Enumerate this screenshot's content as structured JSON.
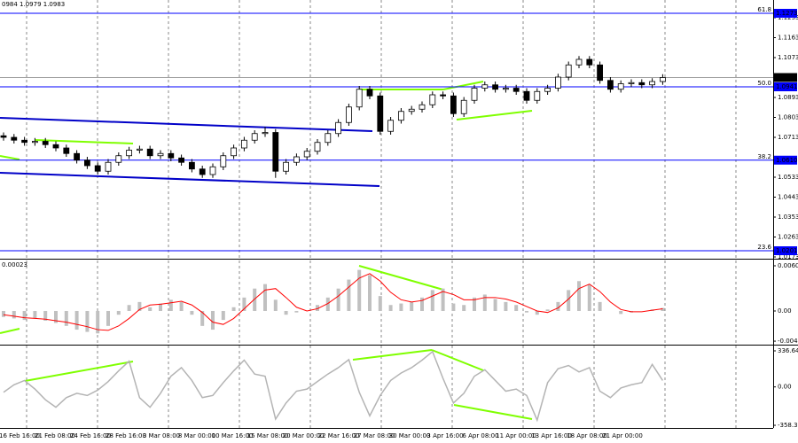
{
  "chart_data": [
    {
      "type": "candlestick",
      "header": "0984 1.0979 1.0983",
      "open": [
        1.072,
        1.0713,
        1.07,
        1.069,
        1.0695,
        1.068,
        1.0665,
        1.064,
        1.061,
        1.0585,
        1.056,
        1.06,
        1.063,
        1.0655,
        1.066,
        1.063,
        1.064,
        1.062,
        1.06,
        1.057,
        1.0545,
        1.058,
        1.063,
        1.0665,
        1.07,
        1.073,
        1.0735,
        1.056,
        1.06,
        1.0625,
        1.065,
        1.069,
        1.073,
        1.078,
        1.085,
        1.093,
        1.09,
        1.074,
        1.079,
        1.083,
        1.084,
        1.086,
        1.0905,
        1.09,
        1.082,
        1.088,
        1.0935,
        1.095,
        1.093,
        1.0935,
        1.092,
        1.088,
        1.092,
        1.0935,
        1.0985,
        1.104,
        1.1065,
        1.104,
        1.097,
        1.093,
        1.0955,
        1.096,
        1.095,
        1.0965
      ],
      "high": [
        1.0735,
        1.0728,
        1.0715,
        1.071,
        1.071,
        1.0695,
        1.068,
        1.0655,
        1.0625,
        1.06,
        1.0615,
        1.0645,
        1.067,
        1.0675,
        1.0675,
        1.0655,
        1.0655,
        1.0635,
        1.0615,
        1.0585,
        1.0595,
        1.0645,
        1.068,
        1.0715,
        1.0745,
        1.076,
        1.075,
        1.0615,
        1.064,
        1.0665,
        1.0705,
        1.0745,
        1.0795,
        1.0865,
        1.0945,
        1.0945,
        1.0915,
        1.0805,
        1.0845,
        1.0855,
        1.0875,
        1.092,
        1.092,
        1.0915,
        1.0895,
        1.095,
        1.0965,
        1.0965,
        1.095,
        1.095,
        1.0935,
        1.0935,
        1.095,
        1.1,
        1.1055,
        1.108,
        1.108,
        1.1055,
        1.0985,
        1.097,
        1.0975,
        1.0975,
        1.098,
        1.0998
      ],
      "low": [
        1.0698,
        1.0685,
        1.0675,
        1.0675,
        1.0665,
        1.065,
        1.0625,
        1.0595,
        1.057,
        1.0545,
        1.0545,
        1.0585,
        1.0615,
        1.064,
        1.0615,
        1.0615,
        1.0605,
        1.0585,
        1.0555,
        1.053,
        1.053,
        1.0565,
        1.0615,
        1.065,
        1.0685,
        1.0715,
        1.053,
        1.0545,
        1.0585,
        1.061,
        1.0635,
        1.0675,
        1.0715,
        1.0765,
        1.0835,
        1.0885,
        1.0725,
        1.0725,
        1.0775,
        1.0815,
        1.0825,
        1.0845,
        1.0885,
        1.0805,
        1.0805,
        1.0865,
        1.092,
        1.0915,
        1.0915,
        1.0905,
        1.0865,
        1.0865,
        1.0905,
        1.092,
        1.097,
        1.1025,
        1.1025,
        1.0955,
        1.0915,
        1.0915,
        1.094,
        1.0935,
        1.0935,
        1.095
      ],
      "close": [
        1.0713,
        1.07,
        1.069,
        1.0695,
        1.068,
        1.0665,
        1.064,
        1.061,
        1.0585,
        1.056,
        1.06,
        1.063,
        1.0655,
        1.066,
        1.063,
        1.064,
        1.062,
        1.06,
        1.057,
        1.0545,
        1.058,
        1.063,
        1.0665,
        1.07,
        1.073,
        1.0735,
        1.056,
        1.06,
        1.0625,
        1.065,
        1.069,
        1.073,
        1.078,
        1.085,
        1.093,
        1.09,
        1.074,
        1.079,
        1.083,
        1.084,
        1.086,
        1.0905,
        1.09,
        1.082,
        1.088,
        1.0935,
        1.095,
        1.093,
        1.0935,
        1.092,
        1.088,
        1.092,
        1.0935,
        1.0985,
        1.104,
        1.1065,
        1.104,
        1.097,
        1.093,
        1.0955,
        1.096,
        1.095,
        1.0965,
        1.0983
      ],
      "ylim": [
        1.0173,
        1.1333
      ],
      "yticks": [
        1.1253,
        1.1163,
        1.1073,
        1.0893,
        1.0803,
        1.0713,
        1.0533,
        1.0443,
        1.0353,
        1.0263,
        1.0173
      ],
      "levels": [
        {
          "name": "61.8",
          "value": 1.1273
        },
        {
          "name": "50.0",
          "value": 1.0941
        },
        {
          "name": "38.2",
          "value": {
            "value": 1.061,
            "label": "1.0610"
          }
        },
        {
          "name": "23.6",
          "value": 1.0201
        }
      ],
      "current": 1.0983,
      "x_labels": [
        "16 Feb 16:00",
        "21 Feb 08:00",
        "24 Feb 16:00",
        "28 Feb 16:00",
        "3 Mar 08:00",
        "8 Mar 00:00",
        "10 Mar 16:00",
        "15 Mar 08:00",
        "20 Mar 00:00",
        "22 Mar 16:00",
        "27 Mar 08:00",
        "30 Mar 00:00",
        "3 Apr 16:00",
        "6 Apr 08:00",
        "11 Apr 00:00",
        "13 Apr 16:00",
        "18 Apr 08:00",
        "21 Apr 00:00"
      ]
    },
    {
      "type": "macd",
      "label": "0.00023",
      "values": [
        -0.0008,
        -0.001,
        -0.0012,
        -0.001,
        -0.0013,
        -0.0016,
        -0.002,
        -0.0025,
        -0.0028,
        -0.003,
        -0.002,
        -0.0005,
        0.0008,
        0.0012,
        0.0005,
        0.001,
        0.0015,
        0.0012,
        -0.0005,
        -0.002,
        -0.0025,
        -0.0012,
        0.0005,
        0.0018,
        0.003,
        0.0036,
        0.0015,
        -0.0005,
        -0.0002,
        0.0,
        0.0008,
        0.0018,
        0.003,
        0.0042,
        0.0055,
        0.0048,
        0.002,
        0.0008,
        0.001,
        0.0012,
        0.0018,
        0.0028,
        0.003,
        0.001,
        0.0008,
        0.0018,
        0.0022,
        0.0016,
        0.0012,
        0.0008,
        -0.0002,
        -0.0005,
        0.0002,
        0.0012,
        0.0028,
        0.004,
        0.0035,
        0.0012,
        0.0,
        -0.0004,
        -0.0002,
        0.0,
        0.0002,
        0.0004
      ],
      "signal": [
        -0.0005,
        -0.0007,
        -0.0009,
        -0.001,
        -0.0011,
        -0.0013,
        -0.0015,
        -0.0018,
        -0.0021,
        -0.0025,
        -0.0026,
        -0.002,
        -0.001,
        0.0002,
        0.0008,
        0.0009,
        0.0011,
        0.0013,
        0.0008,
        -0.0002,
        -0.0015,
        -0.0018,
        -0.001,
        0.0003,
        0.0016,
        0.0028,
        0.003,
        0.0018,
        0.0005,
        0.0,
        0.0003,
        0.001,
        0.002,
        0.0032,
        0.0044,
        0.005,
        0.004,
        0.0025,
        0.0015,
        0.0012,
        0.0014,
        0.002,
        0.0026,
        0.0022,
        0.0015,
        0.0015,
        0.0018,
        0.0018,
        0.0016,
        0.0012,
        0.0006,
        0.0,
        -0.0002,
        0.0004,
        0.0016,
        0.003,
        0.0036,
        0.0026,
        0.0012,
        0.0002,
        -0.0001,
        -0.0001,
        0.0001,
        0.0003
      ],
      "color": "#c0c0c0",
      "signal_color": "#ff0000",
      "ylim": [
        -0.00439,
        0.00676
      ],
      "yticks": [
        0.00605,
        {
          "value": 0,
          "label": "0.00"
        },
        -0.00404
      ]
    },
    {
      "type": "line",
      "values": [
        -50,
        20,
        60,
        -20,
        -120,
        -190,
        -100,
        -60,
        -80,
        -30,
        50,
        150,
        240,
        -100,
        -190,
        -60,
        100,
        180,
        60,
        -100,
        -80,
        40,
        150,
        250,
        120,
        100,
        -300,
        -150,
        -40,
        -20,
        50,
        120,
        180,
        255,
        -50,
        -270,
        -80,
        60,
        130,
        180,
        250,
        330,
        80,
        -150,
        -60,
        100,
        160,
        60,
        -40,
        -20,
        -80,
        -310,
        40,
        170,
        200,
        140,
        180,
        -40,
        -100,
        -10,
        20,
        40,
        210,
        60
      ],
      "color": "#b4b4b4",
      "ylim": [
        -383,
        378
      ],
      "yticks": [
        336.644,
        {
          "value": 0,
          "label": "0.00"
        },
        -358.398
      ]
    }
  ]
}
